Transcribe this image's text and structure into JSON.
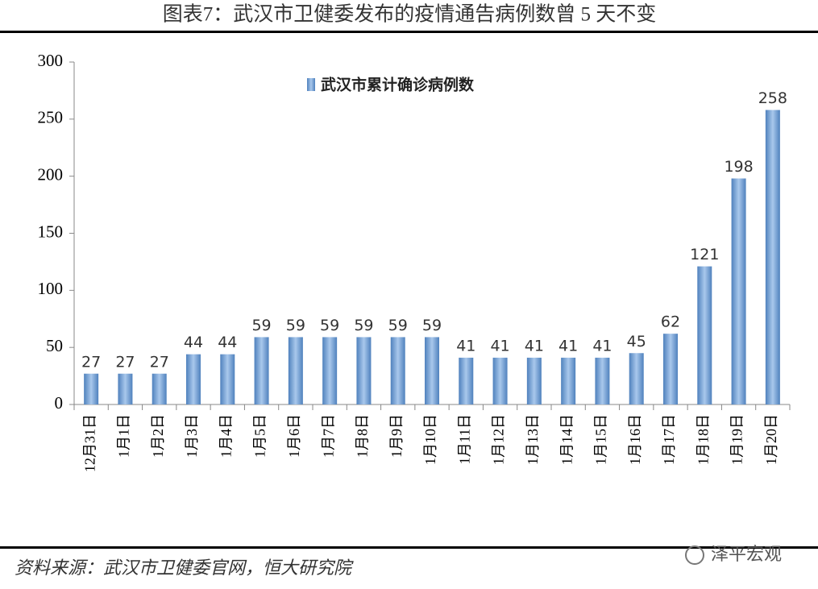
{
  "chart_data": {
    "type": "bar",
    "title": "图表7：武汉市卫健委发布的疫情通告病例数曾 5 天不变",
    "categories": [
      "12月31日",
      "1月1日",
      "1月2日",
      "1月3日",
      "1月4日",
      "1月5日",
      "1月6日",
      "1月7日",
      "1月8日",
      "1月9日",
      "1月10日",
      "1月11日",
      "1月12日",
      "1月13日",
      "1月14日",
      "1月15日",
      "1月16日",
      "1月17日",
      "1月18日",
      "1月19日",
      "1月20日"
    ],
    "series": [
      {
        "name": "武汉市累计确诊病例数",
        "color": "#4f81bd",
        "values": [
          27,
          27,
          27,
          44,
          44,
          59,
          59,
          59,
          59,
          59,
          59,
          41,
          41,
          41,
          41,
          41,
          45,
          62,
          121,
          198,
          258
        ]
      }
    ],
    "ylim": [
      0,
      300
    ],
    "yticks": [
      0,
      50,
      100,
      150,
      200,
      250,
      300
    ],
    "source": "资料来源：武汉市卫健委官网，恒大研究院",
    "watermark": "泽平宏观"
  }
}
